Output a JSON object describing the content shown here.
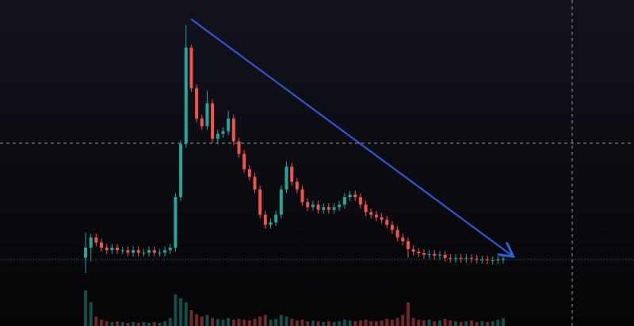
{
  "chart_data": {
    "type": "candlestick",
    "up_color": "#26a69a",
    "down_color": "#ef5350",
    "ylim": [
      0,
      100
    ],
    "open": [
      6,
      10,
      14,
      12,
      10,
      9,
      10,
      9,
      9,
      8,
      9,
      8,
      8,
      9,
      8,
      8,
      9,
      10,
      30,
      51,
      89,
      73,
      61,
      58,
      67,
      53,
      55,
      56,
      61,
      52,
      47,
      41,
      38,
      33,
      23,
      19,
      20,
      23,
      33,
      42,
      36,
      33,
      28,
      26,
      27,
      25,
      26,
      25,
      26,
      27,
      30,
      31,
      30,
      27,
      24,
      23,
      22,
      21,
      19,
      17,
      14,
      12.5,
      9.4,
      8.4,
      7.8,
      7.2,
      7.5,
      6.9,
      7.2,
      5.9,
      5.6,
      5.9,
      5.6,
      5.9,
      5.6,
      5.3,
      5.3,
      5,
      5,
      5.3
    ],
    "high": [
      16,
      15.5,
      15.5,
      13.5,
      11.5,
      11.5,
      11.5,
      10.5,
      10.5,
      10.5,
      10.5,
      9.5,
      10.5,
      10.5,
      9.5,
      10.5,
      11.5,
      31.5,
      52.5,
      98,
      90,
      74.5,
      62.5,
      72,
      68.5,
      56.5,
      57.5,
      64,
      62.5,
      53.5,
      48.5,
      42.5,
      39.5,
      34.5,
      24.5,
      21.5,
      24.5,
      34.5,
      44,
      43.5,
      37.5,
      34.5,
      29.5,
      28.5,
      28.5,
      27.5,
      27.5,
      27.5,
      28.5,
      31.5,
      32.5,
      32.5,
      31.5,
      28.5,
      25.5,
      24.5,
      23.5,
      22.5,
      20.5,
      18.5,
      15.5,
      14,
      10.9,
      9.9,
      9.3,
      9,
      9,
      8.7,
      8.7,
      7.4,
      7.4,
      7.4,
      7.4,
      7.4,
      7.1,
      6.8,
      6.8,
      6.5,
      6.8,
      7.1
    ],
    "low": [
      0,
      4.5,
      10.5,
      8.5,
      7.5,
      7.5,
      7.5,
      7.5,
      6.5,
      6.5,
      6.5,
      6.5,
      6.5,
      6.5,
      6.5,
      6.5,
      7.5,
      8.5,
      28.5,
      49.5,
      71.5,
      59.5,
      56.5,
      56.5,
      51.5,
      51.5,
      53.5,
      54.5,
      50.5,
      45.5,
      39.5,
      36.5,
      31.5,
      21.5,
      17.5,
      17.5,
      18.5,
      21.5,
      31.5,
      34.5,
      31.5,
      26.5,
      24.5,
      24.5,
      23.5,
      23.5,
      23.5,
      23.5,
      24.5,
      25.5,
      28.5,
      28.5,
      25.5,
      22.5,
      21.5,
      20.5,
      19.5,
      17.5,
      15.5,
      12.5,
      11,
      6,
      6.9,
      6.3,
      5.7,
      5.7,
      5.4,
      5.4,
      4.4,
      4.1,
      4.1,
      4.1,
      4.1,
      4.1,
      3.8,
      3.8,
      3.5,
      3.5,
      3.5,
      3.8
    ],
    "close": [
      10,
      14,
      12,
      10,
      9,
      10,
      9,
      9,
      8,
      9,
      8,
      8,
      9,
      8,
      8,
      9,
      10,
      30,
      51,
      89,
      73,
      61,
      58,
      67,
      53,
      55,
      56,
      61,
      52,
      47,
      41,
      38,
      33,
      23,
      19,
      20,
      23,
      33,
      42,
      36,
      33,
      28,
      26,
      27,
      25,
      26,
      25,
      26,
      27,
      30,
      31,
      30,
      27,
      24,
      23,
      22,
      21,
      19,
      17,
      14,
      12.5,
      9.4,
      8.4,
      7.8,
      7.2,
      7.5,
      6.9,
      7.2,
      5.9,
      5.6,
      5.9,
      5.6,
      5.9,
      5.6,
      5.3,
      5.3,
      5,
      5,
      5.3,
      5.6
    ],
    "volume": [
      45,
      30,
      12,
      8,
      6,
      5,
      6,
      5,
      4,
      5,
      4,
      5,
      4,
      5,
      4,
      6,
      10,
      40,
      35,
      30,
      20,
      15,
      12,
      14,
      10,
      9,
      8,
      10,
      8,
      9,
      8,
      7,
      9,
      12,
      14,
      8,
      9,
      14,
      12,
      9,
      7,
      8,
      6,
      7,
      6,
      5,
      6,
      5,
      6,
      8,
      7,
      6,
      7,
      8,
      6,
      6,
      7,
      9,
      8,
      10,
      14,
      30,
      10,
      8,
      7,
      8,
      6,
      7,
      9,
      7,
      6,
      5,
      6,
      7,
      5,
      6,
      5,
      6,
      8,
      10
    ]
  }
}
